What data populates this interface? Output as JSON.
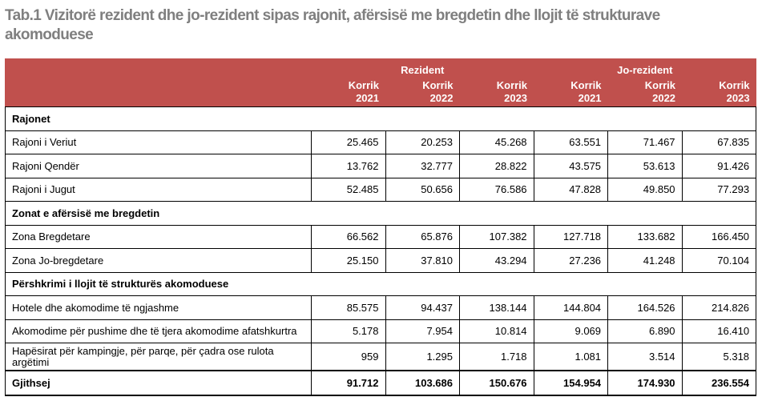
{
  "title": "Tab.1 Vizitorë rezident dhe jo-rezident sipas rajonit, afërsisë me bregdetin dhe llojit të strukturave akomoduese",
  "header": {
    "group_resident": "Rezident",
    "group_nonresident": "Jo-rezident",
    "years": [
      {
        "month": "Korrik",
        "year": "2021"
      },
      {
        "month": "Korrik",
        "year": "2022"
      },
      {
        "month": "Korrik",
        "year": "2023"
      },
      {
        "month": "Korrik",
        "year": "2021"
      },
      {
        "month": "Korrik",
        "year": "2022"
      },
      {
        "month": "Korrik",
        "year": "2023"
      }
    ]
  },
  "sections": {
    "regions": "Rajonet",
    "coast": "Zonat e afërsisë me bregdetin",
    "types": "Përshkrimi i llojit të strukturës akomoduese"
  },
  "rows": {
    "north": {
      "label": "Rajoni i Veriut",
      "values": [
        "25.465",
        "20.253",
        "45.268",
        "63.551",
        "71.467",
        "67.835"
      ]
    },
    "center": {
      "label": "Rajoni Qendër",
      "values": [
        "13.762",
        "32.777",
        "28.822",
        "43.575",
        "53.613",
        "91.426"
      ]
    },
    "south": {
      "label": "Rajoni i Jugut",
      "values": [
        "52.485",
        "50.656",
        "76.586",
        "47.828",
        "49.850",
        "77.293"
      ]
    },
    "coastal": {
      "label": "Zona Bregdetare",
      "values": [
        "66.562",
        "65.876",
        "107.382",
        "127.718",
        "133.682",
        "166.450"
      ]
    },
    "noncoastal": {
      "label": "Zona Jo-bregdetare",
      "values": [
        "25.150",
        "37.810",
        "43.294",
        "27.236",
        "41.248",
        "70.104"
      ]
    },
    "hotels": {
      "label": "Hotele dhe akomodime të ngjashme",
      "values": [
        "85.575",
        "94.437",
        "138.144",
        "144.804",
        "164.526",
        "214.826"
      ]
    },
    "holiday": {
      "label": "Akomodime për pushime dhe të tjera akomodime afatshkurtra",
      "values": [
        "5.178",
        "7.954",
        "10.814",
        "9.069",
        "6.890",
        "16.410"
      ]
    },
    "camping": {
      "label": "Hapësirat për kampingje, për parqe, për çadra ose rulota argëtimi",
      "values": [
        "959",
        "1.295",
        "1.718",
        "1.081",
        "3.514",
        "5.318"
      ]
    },
    "total": {
      "label": "Gjithsej",
      "values": [
        "91.712",
        "103.686",
        "150.676",
        "154.954",
        "174.930",
        "236.554"
      ]
    }
  }
}
